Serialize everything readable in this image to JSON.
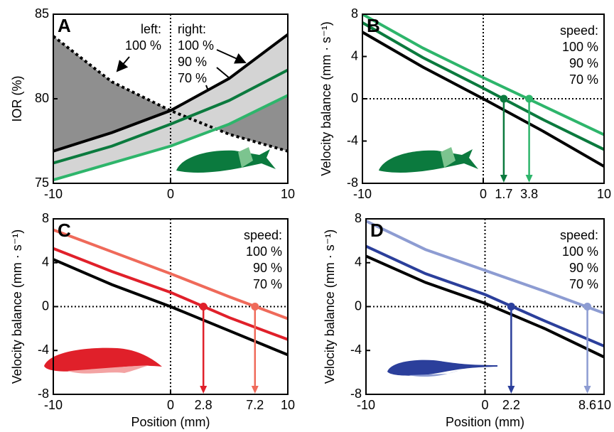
{
  "chart_data": [
    {
      "type": "line",
      "label": "A",
      "ylabel": "IOR (%)",
      "xlim": [
        -10,
        10
      ],
      "ylim": [
        75,
        85
      ],
      "xticks": [
        -10,
        0,
        10
      ],
      "yticks": [
        75,
        80,
        85
      ],
      "annotations": [
        "left:",
        "right:"
      ],
      "x": [
        -10,
        -5,
        0,
        5,
        10
      ],
      "series": [
        {
          "name": "100 %",
          "color": "#000000",
          "dashed": true,
          "values": [
            83.7,
            81.0,
            79.3,
            77.9,
            76.9
          ]
        },
        {
          "name": "100 %",
          "color": "#000000",
          "values": [
            76.9,
            78.0,
            79.3,
            81.2,
            83.8
          ]
        },
        {
          "name": "90 %",
          "color": "#0b7a3e",
          "values": [
            76.2,
            77.2,
            78.5,
            79.9,
            81.7
          ]
        },
        {
          "name": "70 %",
          "color": "#2eb56b",
          "values": [
            75.2,
            76.2,
            77.2,
            78.5,
            80.2
          ]
        }
      ]
    },
    {
      "type": "line",
      "label": "B",
      "ylabel": "Velocity balance (mm · s⁻¹)",
      "xlim": [
        -10,
        10
      ],
      "ylim": [
        -8,
        8
      ],
      "xticks": [
        -10,
        0,
        10
      ],
      "yticks": [
        -8,
        -4,
        0,
        4,
        8
      ],
      "legend_title": "speed:",
      "x": [
        -10,
        -5,
        0,
        5,
        10
      ],
      "series": [
        {
          "name": "100 %",
          "color": "#000000",
          "values": [
            6.3,
            3.0,
            0,
            -3.1,
            -6.4
          ]
        },
        {
          "name": "90 %",
          "color": "#0b7a3e",
          "values": [
            7.2,
            3.9,
            1.0,
            -2.0,
            -4.8
          ],
          "crossing": 1.7
        },
        {
          "name": "70 %",
          "color": "#2eb56b",
          "values": [
            8,
            4.8,
            2.0,
            -0.7,
            -3.4
          ],
          "crossing": 3.8
        }
      ]
    },
    {
      "type": "line",
      "label": "C",
      "ylabel": "Velocity balance (mm · s⁻¹)",
      "xlabel": "Position (mm)",
      "xlim": [
        -10,
        10
      ],
      "ylim": [
        -8,
        8
      ],
      "xticks": [
        -10,
        0,
        10
      ],
      "yticks": [
        -8,
        -4,
        0,
        4,
        8
      ],
      "legend_title": "speed:",
      "x": [
        -10,
        -5,
        0,
        5,
        10
      ],
      "series": [
        {
          "name": "100 %",
          "color": "#000000",
          "values": [
            4.3,
            2.0,
            0,
            -2.2,
            -4.4
          ]
        },
        {
          "name": "90 %",
          "color": "#e0202a",
          "values": [
            5.3,
            3.2,
            1.3,
            -1.0,
            -3.0
          ],
          "crossing": 2.8
        },
        {
          "name": "70 %",
          "color": "#ef6a5a",
          "values": [
            7.0,
            5.0,
            3.0,
            0.9,
            -1.1
          ],
          "crossing": 7.2
        }
      ]
    },
    {
      "type": "line",
      "label": "D",
      "ylabel": "Velocity balance (mm · s⁻¹)",
      "xlabel": "Position (mm)",
      "xlim": [
        -10,
        10
      ],
      "ylim": [
        -8,
        8
      ],
      "xticks": [
        -10,
        0,
        10
      ],
      "yticks": [
        -8,
        -4,
        0,
        4,
        8
      ],
      "legend_title": "speed:",
      "x": [
        -10,
        -5,
        0,
        5,
        10
      ],
      "series": [
        {
          "name": "100 %",
          "color": "#000000",
          "values": [
            4.6,
            2.2,
            0.3,
            -2.0,
            -4.6
          ]
        },
        {
          "name": "90 %",
          "color": "#2b3f9b",
          "values": [
            5.5,
            3.0,
            1.1,
            -1.3,
            -3.6
          ],
          "crossing": 2.2
        },
        {
          "name": "70 %",
          "color": "#8d9cd2",
          "values": [
            7.8,
            5.2,
            3.3,
            1.4,
            -0.6
          ],
          "crossing": 8.6
        }
      ]
    }
  ]
}
